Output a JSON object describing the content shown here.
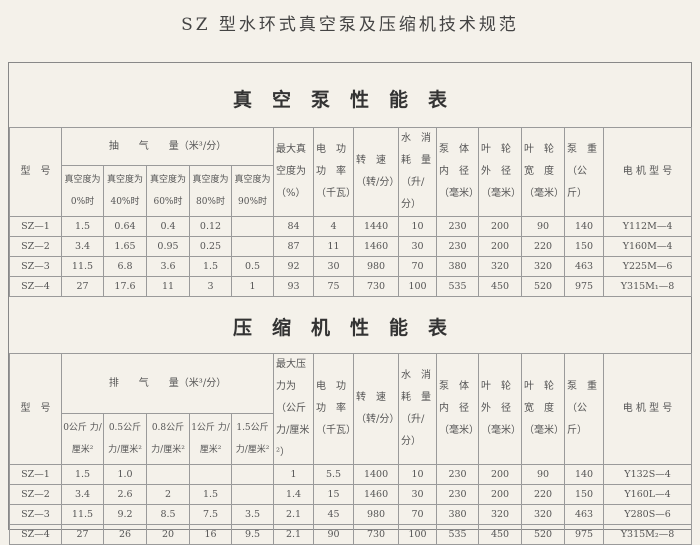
{
  "title": "SZ 型水环式真空泵及压缩机技术规范",
  "vacuum": {
    "title": "真空泵性能表",
    "header": {
      "model": "型　号",
      "flow_group": "抽　　气　　量（米³/分）",
      "flow_cols": [
        "真空度为 0%时",
        "真空度为 40%时",
        "真空度为 60%时",
        "真空度为 80%时",
        "真空度为 90%时"
      ],
      "max": "最大真空度为（%）",
      "power": "电　功 功　率（千瓦）",
      "speed": "转　速（转/分）",
      "water": "水　消 耗　量（升/分）",
      "body": "泵　体 内　径（毫米）",
      "od": "叶　轮 外　径（毫米）",
      "width": "叶　轮 宽　度（毫米）",
      "weight": "泵　重（公斤）",
      "motor": "电 机 型 号"
    },
    "rows": [
      [
        "SZ—1",
        "1.5",
        "0.64",
        "0.4",
        "0.12",
        "",
        "84",
        "4",
        "1440",
        "10",
        "230",
        "200",
        "90",
        "140",
        "Y112M—4"
      ],
      [
        "SZ—2",
        "3.4",
        "1.65",
        "0.95",
        "0.25",
        "",
        "87",
        "11",
        "1460",
        "30",
        "230",
        "200",
        "220",
        "150",
        "Y160M—4"
      ],
      [
        "SZ—3",
        "11.5",
        "6.8",
        "3.6",
        "1.5",
        "0.5",
        "92",
        "30",
        "980",
        "70",
        "380",
        "320",
        "320",
        "463",
        "Y225M—6"
      ],
      [
        "SZ—4",
        "27",
        "17.6",
        "11",
        "3",
        "1",
        "93",
        "75",
        "730",
        "100",
        "535",
        "450",
        "520",
        "975",
        "Y315M₁—8"
      ]
    ]
  },
  "compressor": {
    "title": "压缩机性能表",
    "header": {
      "model": "型　号",
      "flow_group": "排　　气　　量（米³/分）",
      "flow_cols": [
        "0公斤 力/厘米²",
        "0.5公斤 力/厘米²",
        "0.8公斤 力/厘米²",
        "1公斤 力/厘米²",
        "1.5公斤 力/厘米²"
      ],
      "max": "最大压力为（公斤力/厘米²）",
      "power": "电　功 功　率（千瓦）",
      "speed": "转　速（转/分）",
      "water": "水　消 耗　量（升/分）",
      "body": "泵　体 内　径（毫米）",
      "od": "叶　轮 外　径（毫米）",
      "width": "叶　轮 宽　度（毫米）",
      "weight": "泵　重（公斤）",
      "motor": "电 机 型 号"
    },
    "rows": [
      [
        "SZ—1",
        "1.5",
        "1.0",
        "",
        "",
        "",
        "1",
        "5.5",
        "1400",
        "10",
        "230",
        "200",
        "90",
        "140",
        "Y132S—4"
      ],
      [
        "SZ—2",
        "3.4",
        "2.6",
        "2",
        "1.5",
        "",
        "1.4",
        "15",
        "1460",
        "30",
        "230",
        "200",
        "220",
        "150",
        "Y160L—4"
      ],
      [
        "SZ—3",
        "11.5",
        "9.2",
        "8.5",
        "7.5",
        "3.5",
        "2.1",
        "45",
        "980",
        "70",
        "380",
        "320",
        "320",
        "463",
        "Y280S—6"
      ],
      [
        "SZ—4",
        "27",
        "26",
        "20",
        "16",
        "9.5",
        "2.1",
        "90",
        "730",
        "100",
        "535",
        "450",
        "520",
        "975",
        "Y315M₂—8"
      ]
    ]
  }
}
